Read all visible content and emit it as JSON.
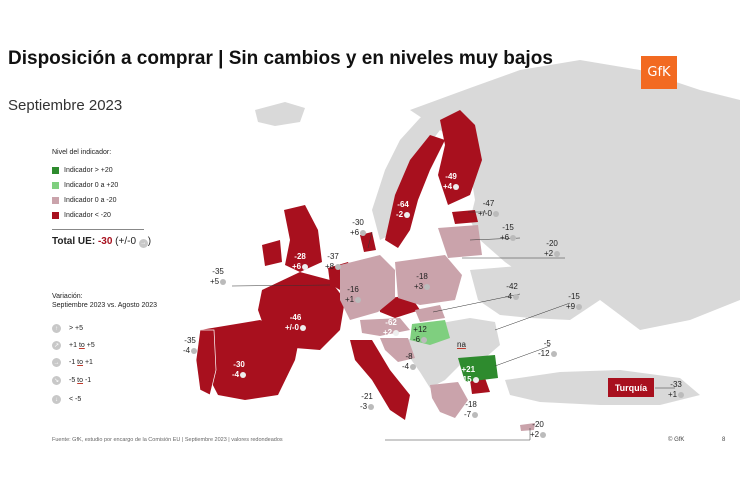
{
  "title": "Disposición a comprar | Sin cambios y en niveles muy bajos",
  "subtitle": "Septiembre 2023",
  "logo": "GfK",
  "colors": {
    "dark_green": "#2e8b2e",
    "light_green": "#7fcf7f",
    "pink": "#caa3ab",
    "dark_red": "#a8101e",
    "grey": "#d9d9d9"
  },
  "legend": {
    "title": "Nivel del indicador:",
    "items": [
      {
        "label": "Indicador > +20",
        "color": "#2e8b2e"
      },
      {
        "label": "Indicador 0 a +20",
        "color": "#7fcf7f"
      },
      {
        "label": "Indicador 0 a -20",
        "color": "#caa3ab"
      },
      {
        "label": "Indicador < -20",
        "color": "#a8101e"
      }
    ]
  },
  "total": {
    "label": "Total UE:",
    "value": "-30",
    "change": "(+/-0",
    "change_end": ")"
  },
  "variation": {
    "title_line1": "Variación:",
    "title_line2": "Septiembre 2023 vs. Agosto 2023",
    "items": [
      {
        "icon": "arrow-up-icon",
        "glyph": "↑",
        "pre": "> +5",
        "mid": "",
        "post": ""
      },
      {
        "icon": "arrow-up-right-icon",
        "glyph": "↗",
        "pre": "+1 ",
        "mid": "to",
        "post": " +5"
      },
      {
        "icon": "arrow-right-icon",
        "glyph": "→",
        "pre": "-1 ",
        "mid": "to",
        "post": " +1"
      },
      {
        "icon": "arrow-down-right-icon",
        "glyph": "↘",
        "pre": "-5 ",
        "mid": "to",
        "post": " -1"
      },
      {
        "icon": "arrow-down-icon",
        "glyph": "↓",
        "pre": "< -5",
        "mid": "",
        "post": ""
      }
    ]
  },
  "countries": {
    "portugal": {
      "value": "-35",
      "change": "-4"
    },
    "spain": {
      "value": "-30",
      "change": "-4"
    },
    "france": {
      "value": "-46",
      "change": "+/-0"
    },
    "ireland": {
      "value": "-35",
      "change": "+5"
    },
    "uk": {
      "value": "-28",
      "change": "+6"
    },
    "belgium": {
      "value": "-37",
      "change": "+8"
    },
    "denmark": {
      "value": "-30",
      "change": "+6"
    },
    "sweden": {
      "value": "-64",
      "change": "-2"
    },
    "finland": {
      "value": "-49",
      "change": "+4"
    },
    "estonia": {
      "value": "-47",
      "change": "+/-0"
    },
    "latvia": {
      "value": "-15",
      "change": "+6"
    },
    "lithuania": {
      "value": "-20",
      "change": "+2"
    },
    "poland": {
      "value": "-18",
      "change": "+3"
    },
    "germany": {
      "value": "-16",
      "change": "+1"
    },
    "czechia": {
      "value": "-62",
      "change": "+2"
    },
    "slovakia": {
      "value": "-42",
      "change": "-4"
    },
    "hungary": {
      "value": "+12",
      "change": "-6"
    },
    "romania": {
      "value": "na",
      "change": ""
    },
    "romania_side": {
      "value": "-15",
      "change": "+9"
    },
    "croatia": {
      "value": "-8",
      "change": "-4"
    },
    "bulgaria": {
      "value": "+21",
      "change": "+15"
    },
    "bulgaria_side": {
      "value": "-5",
      "change": "-12"
    },
    "italy": {
      "value": "-21",
      "change": "-3"
    },
    "greece": {
      "value": "-18",
      "change": "-7"
    },
    "cyprus": {
      "value": "-20",
      "change": "+2"
    },
    "turkey": {
      "label": "Turquía",
      "value": "-33",
      "change": "+1"
    }
  },
  "footer": {
    "source": "Fuente: GfK, estudio por encargo de la Comisión EU | Septiembre 2023 | valores redondeados",
    "copyright": "© GfK",
    "page": "8"
  }
}
